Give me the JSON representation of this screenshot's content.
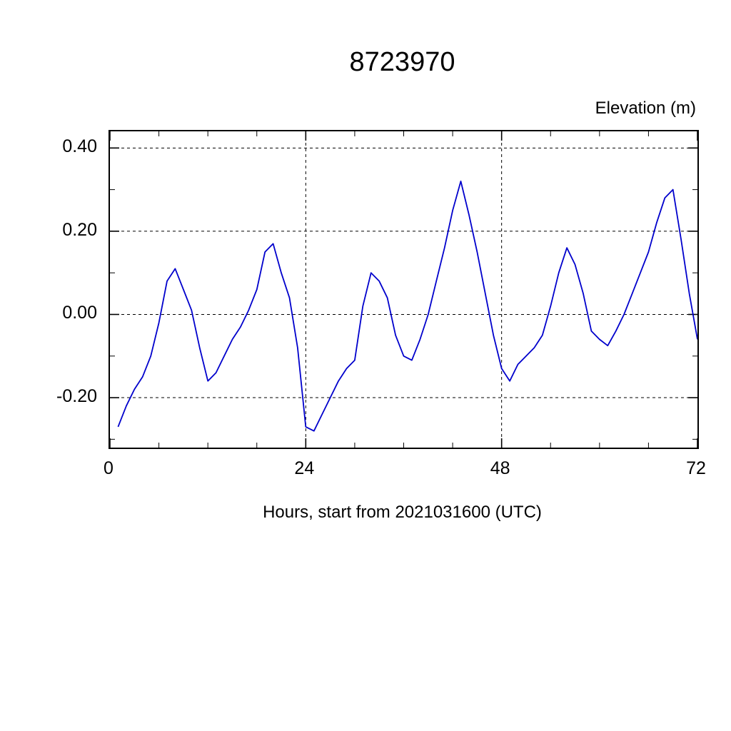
{
  "title": "8723970",
  "ylabel_right": "Elevation (m)",
  "xlabel": "Hours, start from 2021031600 (UTC)",
  "chart_data": {
    "type": "line",
    "title": "8723970",
    "xlabel": "Hours, start from 2021031600 (UTC)",
    "ylabel": "Elevation (m)",
    "line_color": "#0000cc",
    "grid": "dashed",
    "legend": "none",
    "xlim": [
      0,
      72
    ],
    "ylim": [
      -0.32,
      0.44
    ],
    "xticks": {
      "major": [
        0,
        24,
        48,
        72
      ],
      "labels": [
        "0",
        "24",
        "48",
        "72"
      ],
      "minor_step": 6
    },
    "yticks": {
      "major": [
        0.4,
        0.2,
        0.0,
        -0.2
      ],
      "labels": [
        "0.40",
        "0.20",
        "0.00",
        "-0.20"
      ],
      "minor_step": 0.1
    },
    "grid_x": [
      24,
      48
    ],
    "grid_y": [
      0.4,
      0.2,
      0.0,
      -0.2
    ],
    "x": [
      1,
      2,
      3,
      4,
      5,
      6,
      7,
      8,
      9,
      10,
      11,
      12,
      13,
      14,
      15,
      16,
      17,
      18,
      19,
      20,
      21,
      22,
      23,
      24,
      25,
      26,
      27,
      28,
      29,
      30,
      31,
      32,
      33,
      34,
      35,
      36,
      37,
      38,
      39,
      40,
      41,
      42,
      43,
      44,
      45,
      46,
      47,
      48,
      49,
      50,
      51,
      52,
      53,
      54,
      55,
      56,
      57,
      58,
      59,
      60,
      61,
      62,
      63,
      64,
      65,
      66,
      67,
      68,
      69,
      70,
      71,
      72
    ],
    "y": [
      -0.27,
      -0.22,
      -0.18,
      -0.15,
      -0.1,
      -0.02,
      0.08,
      0.11,
      0.06,
      0.01,
      -0.08,
      -0.16,
      -0.14,
      -0.1,
      -0.06,
      -0.03,
      0.01,
      0.06,
      0.15,
      0.17,
      0.1,
      0.04,
      -0.08,
      -0.27,
      -0.28,
      -0.24,
      -0.2,
      -0.16,
      -0.13,
      -0.11,
      0.02,
      0.1,
      0.08,
      0.04,
      -0.05,
      -0.1,
      -0.11,
      -0.06,
      0.0,
      0.08,
      0.16,
      0.25,
      0.32,
      0.24,
      0.15,
      0.05,
      -0.05,
      -0.13,
      -0.16,
      -0.12,
      -0.1,
      -0.08,
      -0.05,
      0.02,
      0.1,
      0.16,
      0.12,
      0.05,
      -0.04,
      -0.06,
      -0.075,
      -0.04,
      0.0,
      0.05,
      0.1,
      0.15,
      0.22,
      0.28,
      0.3,
      0.18,
      0.05,
      -0.06
    ]
  }
}
